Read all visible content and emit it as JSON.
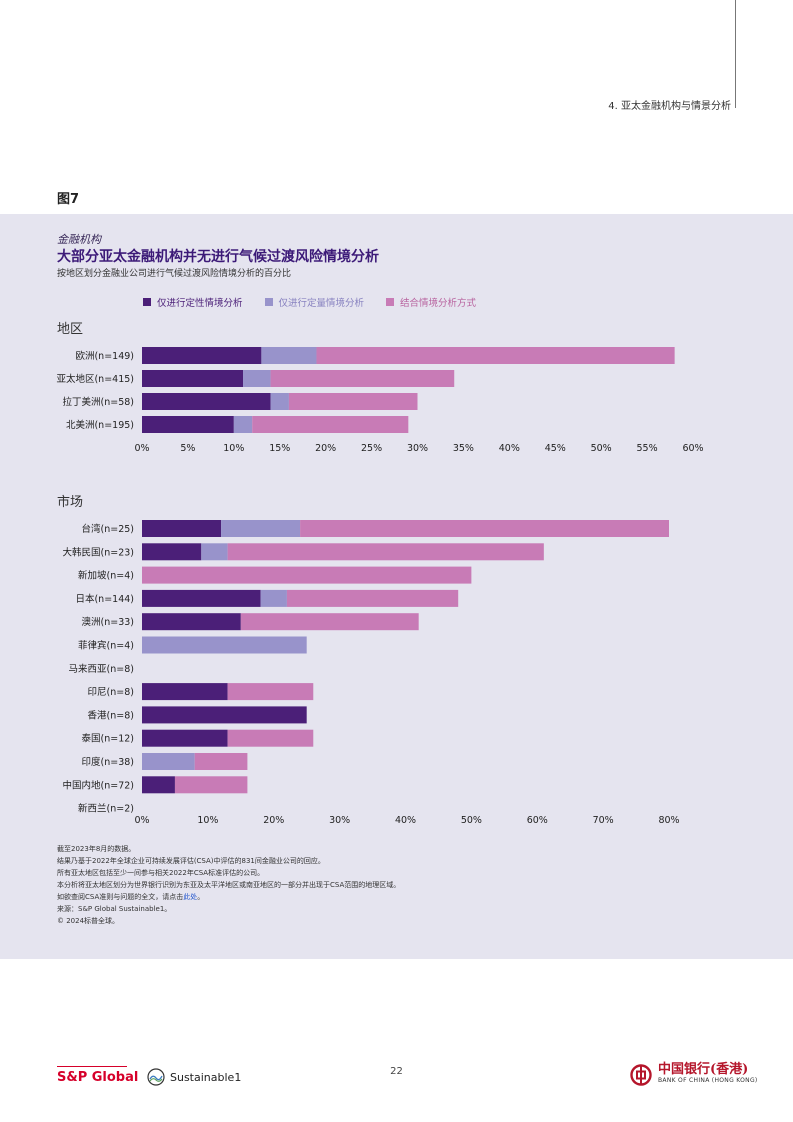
{
  "header": {
    "section": "4. 亚太金融机构与情景分析"
  },
  "figure_label": "图7",
  "colors": {
    "qualitative": "#4b1f78",
    "quantitative": "#9893cb",
    "combined": "#c87bb6",
    "panel_bg": "#e5e4ef",
    "title": "#3c1a78"
  },
  "chart_data": [
    {
      "type": "bar",
      "orientation": "horizontal",
      "stacked": true,
      "kicker": "金融机构",
      "title": "大部分亚太金融机构并无进行气候过渡风险情境分析",
      "subtitle": "按地区划分金融业公司进行气候过渡风险情境分析的百分比",
      "group_title": "地区",
      "legend_position": "top-left",
      "categories": [
        "欧洲(n=149)",
        "亚太地区(n=415)",
        "拉丁美洲(n=58)",
        "北美洲(n=195)"
      ],
      "series": [
        {
          "name": "仅进行定性情境分析",
          "values": [
            13,
            11,
            14,
            10
          ]
        },
        {
          "name": "仅进行定量情境分析",
          "values": [
            6,
            3,
            2,
            2
          ]
        },
        {
          "name": "结合情境分析方式",
          "values": [
            39,
            20,
            14,
            17
          ]
        }
      ],
      "xlim": [
        0,
        60
      ],
      "xticks": [
        "0%",
        "5%",
        "10%",
        "15%",
        "20%",
        "25%",
        "30%",
        "35%",
        "40%",
        "45%",
        "50%",
        "55%",
        "60%"
      ]
    },
    {
      "type": "bar",
      "orientation": "horizontal",
      "stacked": true,
      "group_title": "市场",
      "categories": [
        "台湾(n=25)",
        "大韩民国(n=23)",
        "新加坡(n=4)",
        "日本(n=144)",
        "澳洲(n=33)",
        "菲律宾(n=4)",
        "马来西亚(n=8)",
        "印尼(n=8)",
        "香港(n=8)",
        "泰国(n=12)",
        "印度(n=38)",
        "中国内地(n=72)",
        "新西兰(n=2)"
      ],
      "series": [
        {
          "name": "仅进行定性情境分析",
          "values": [
            12,
            9,
            0,
            18,
            15,
            0,
            0,
            13,
            25,
            13,
            0,
            5,
            0
          ]
        },
        {
          "name": "仅进行定量情境分析",
          "values": [
            12,
            4,
            0,
            4,
            0,
            25,
            0,
            0,
            0,
            0,
            8,
            0,
            0
          ]
        },
        {
          "name": "结合情境分析方式",
          "values": [
            56,
            48,
            50,
            26,
            27,
            0,
            0,
            13,
            0,
            13,
            8,
            11,
            0
          ]
        }
      ],
      "xlim": [
        0,
        80
      ],
      "xticks": [
        "0%",
        "10%",
        "20%",
        "30%",
        "40%",
        "50%",
        "60%",
        "70%",
        "80%"
      ]
    }
  ],
  "notes": [
    "截至2023年8月的数据。",
    "结果乃基于2022年全球企业可持续发展评估(CSA)中评估的831间金融业公司的回应。",
    "所有亚太地区包括至少一间参与相关2022年CSA标准评估的公司。",
    "本分析将亚太地区划分为世界银行识别为东亚及太平洋地区或南亚地区的一部分并出现于CSA范围的地理区域。"
  ],
  "note_link": {
    "prefix": "如欲查阅CSA准则与问题的全文，请点击",
    "link": "此处",
    "suffix": "。"
  },
  "source": "来源：S&P Global Sustainable1。",
  "copyright": "© 2024标普全球。",
  "footer": {
    "page_number": "22",
    "sp_global": "S&P Global",
    "sustainable1": "Sustainable1",
    "boc_cn": "中国银行(香港)",
    "boc_en": "BANK OF CHINA (HONG KONG)"
  }
}
